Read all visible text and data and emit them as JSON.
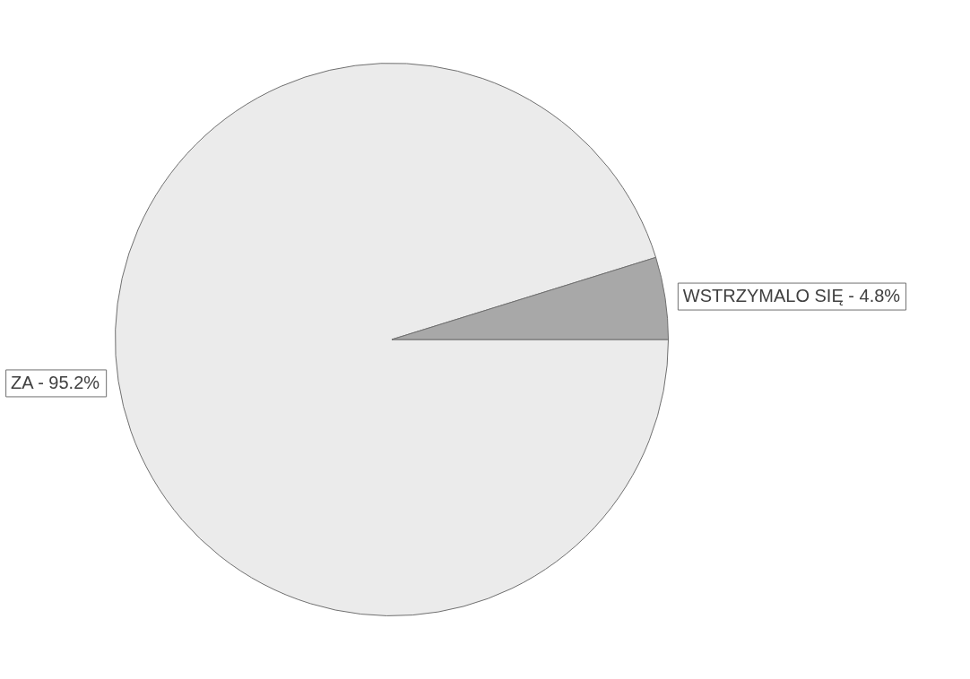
{
  "chart_data": {
    "type": "pie",
    "categories": [
      "ZA",
      "WSTRZYMALO SIĘ"
    ],
    "values": [
      95.2,
      4.8
    ],
    "value_labels": [
      "95.2%",
      "4.8%"
    ],
    "colors": [
      "#ebebeb",
      "#a8a8a8"
    ],
    "legend": false
  }
}
